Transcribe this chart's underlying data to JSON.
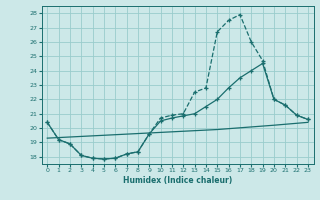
{
  "xlabel": "Humidex (Indice chaleur)",
  "xlim": [
    -0.5,
    23.5
  ],
  "ylim": [
    17.5,
    28.5
  ],
  "yticks": [
    18,
    19,
    20,
    21,
    22,
    23,
    24,
    25,
    26,
    27,
    28
  ],
  "xticks": [
    0,
    1,
    2,
    3,
    4,
    5,
    6,
    7,
    8,
    9,
    10,
    11,
    12,
    13,
    14,
    15,
    16,
    17,
    18,
    19,
    20,
    21,
    22,
    23
  ],
  "bg_color": "#cce8e8",
  "grid_color": "#99cccc",
  "line_color": "#1a6e6e",
  "curve1_x": [
    0,
    1,
    2,
    3,
    4,
    5,
    6,
    7,
    8,
    9,
    10,
    11,
    12,
    13,
    14,
    15,
    16,
    17,
    18,
    19,
    20,
    21,
    22,
    23
  ],
  "curve1_y": [
    20.4,
    19.2,
    18.9,
    18.1,
    17.9,
    17.85,
    17.9,
    18.2,
    18.35,
    19.6,
    20.7,
    20.9,
    21.0,
    22.5,
    22.8,
    26.7,
    27.5,
    27.9,
    26.0,
    24.7,
    22.0,
    21.6,
    20.9,
    20.6
  ],
  "curve2_x": [
    0,
    1,
    2,
    3,
    4,
    5,
    6,
    7,
    8,
    9,
    10,
    11,
    12,
    13,
    14,
    15,
    16,
    17,
    18,
    19,
    20,
    21,
    22,
    23
  ],
  "curve2_y": [
    20.4,
    19.2,
    18.9,
    18.1,
    17.9,
    17.85,
    17.9,
    18.2,
    18.35,
    19.6,
    20.5,
    20.7,
    20.85,
    21.0,
    21.5,
    22.0,
    22.8,
    23.5,
    24.0,
    24.5,
    22.0,
    21.6,
    20.9,
    20.6
  ],
  "curve3_x": [
    0,
    5,
    10,
    15,
    20,
    23
  ],
  "curve3_y": [
    19.3,
    19.5,
    19.7,
    19.9,
    20.2,
    20.4
  ]
}
